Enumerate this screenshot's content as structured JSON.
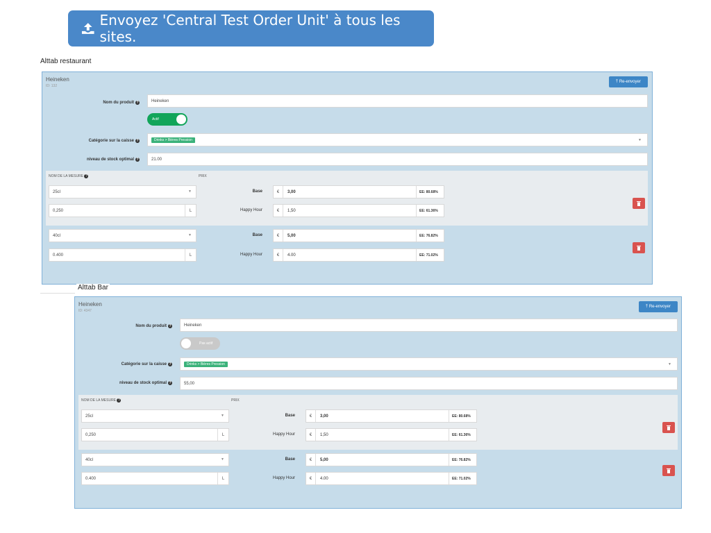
{
  "top_button": {
    "label": "Envoyez 'Central Test Order Unit' à tous les sites."
  },
  "sites": [
    {
      "site_label": "Alttab restaurant",
      "product_name": "Heineken",
      "product_id": "ID: 132",
      "resend_label": "Re-envoyer",
      "labels": {
        "name": "Nom du produit",
        "category": "Catégorie sur la caisse",
        "stock": "niveau de stock optimal"
      },
      "name_value": "Heineken",
      "toggle_label": "Actif",
      "category_tag": "Drinks > Bières Pression",
      "stock_value": "21.00",
      "headers": {
        "measure": "NOM DE LA MESURE",
        "price": "PRIX"
      },
      "measures": [
        {
          "name": "25cl",
          "qty": "0,250",
          "unit": "L",
          "base_label": "Base",
          "base_currency": "€",
          "base_price": "3,00",
          "base_ee": "EE: 80.68%",
          "hh_label": "Happy Hour",
          "hh_currency": "€",
          "hh_price": "1,50",
          "hh_ee": "EE: 61.36%"
        },
        {
          "name": "40cl",
          "qty": "0.400",
          "unit": "L",
          "base_label": "Base",
          "base_currency": "€",
          "base_price": "5,00",
          "base_ee": "EE: 76.82%",
          "hh_label": "Happy Hour",
          "hh_currency": "€",
          "hh_price": "4.00",
          "hh_ee": "EE: 71.02%"
        }
      ]
    },
    {
      "site_label": "Alttab Bar",
      "product_name": "Heineken",
      "product_id": "ID: 4347",
      "resend_label": "Re-envoyer",
      "labels": {
        "name": "Nom du produit",
        "category": "Catégorie sur la caisse",
        "stock": "niveau de stock optimal"
      },
      "name_value": "Heineken",
      "toggle_label": "Pas actif",
      "category_tag": "Drinks > Bières Pression",
      "stock_value": "55,00",
      "headers": {
        "measure": "NOM DE LA MESURE",
        "price": "PRIX"
      },
      "measures": [
        {
          "name": "25cl",
          "qty": "0,250",
          "unit": "L",
          "base_label": "Base",
          "base_currency": "€",
          "base_price": "3,00",
          "base_ee": "EE: 80.68%",
          "hh_label": "Happy Hour",
          "hh_currency": "€",
          "hh_price": "1,50",
          "hh_ee": "EE: 61.36%"
        },
        {
          "name": "40cl",
          "qty": "0.400",
          "unit": "L",
          "base_label": "Base",
          "base_currency": "€",
          "base_price": "5,00",
          "base_ee": "EE: 76.82%",
          "hh_label": "Happy Hour",
          "hh_currency": "€",
          "hh_price": "4.00",
          "hh_ee": "EE: 71.02%"
        }
      ]
    }
  ],
  "icons": {
    "upload": "upload-icon",
    "trash": "trash-icon",
    "help": "help-icon",
    "caret": "caret-down-icon"
  },
  "colors": {
    "primary": "#4a88c9",
    "card_bg": "#c6dcea",
    "active": "#11a55a",
    "tag": "#3bb27a",
    "danger": "#d9534f"
  }
}
